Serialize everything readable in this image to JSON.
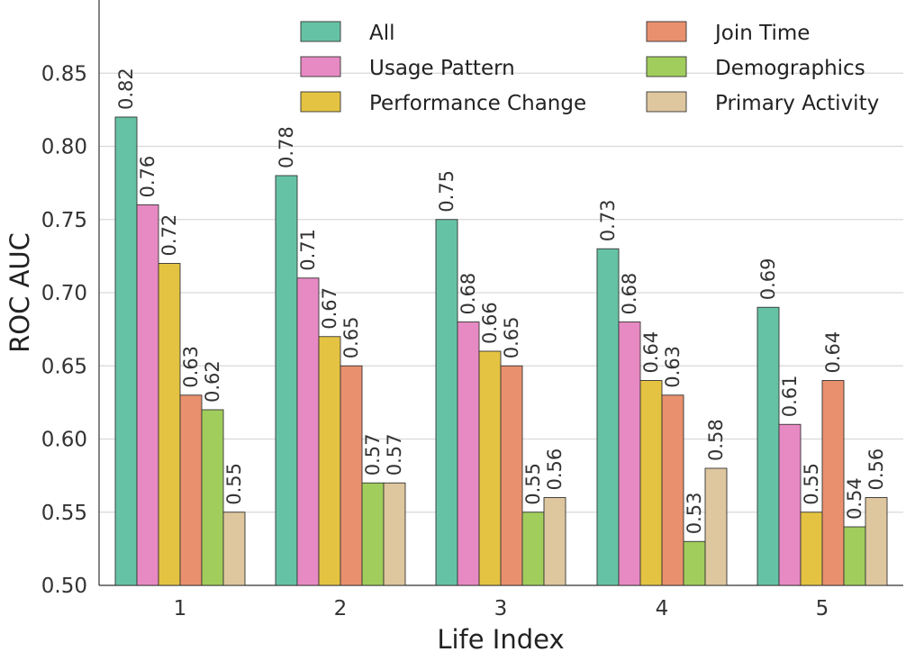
{
  "chart_data": {
    "type": "bar",
    "title": "",
    "xlabel": "Life Index",
    "ylabel": "ROC AUC",
    "ylim": [
      0.5,
      0.9
    ],
    "yticks": [
      "0.50",
      "0.55",
      "0.60",
      "0.65",
      "0.70",
      "0.75",
      "0.80",
      "0.85"
    ],
    "grid": true,
    "legend_position": "top",
    "categories": [
      "1",
      "2",
      "3",
      "4",
      "5"
    ],
    "series": [
      {
        "name": "All",
        "color": "#66c2a5",
        "values": [
          0.82,
          0.78,
          0.75,
          0.73,
          0.69
        ],
        "labels": [
          "0.82",
          "0.78",
          "0.75",
          "0.73",
          "0.69"
        ]
      },
      {
        "name": "Usage Pattern",
        "color": "#e78ac3",
        "values": [
          0.76,
          0.71,
          0.68,
          0.68,
          0.61
        ],
        "labels": [
          "0.76",
          "0.71",
          "0.68",
          "0.68",
          "0.61"
        ]
      },
      {
        "name": "Performance Change",
        "color": "#e5c342",
        "values": [
          0.72,
          0.67,
          0.66,
          0.64,
          0.55
        ],
        "labels": [
          "0.72",
          "0.67",
          "0.66",
          "0.64",
          "0.55"
        ]
      },
      {
        "name": "Join Time",
        "color": "#e9906e",
        "values": [
          0.63,
          0.65,
          0.65,
          0.63,
          0.64
        ],
        "labels": [
          "0.63",
          "0.65",
          "0.65",
          "0.63",
          "0.64"
        ]
      },
      {
        "name": "Demographics",
        "color": "#a1cd5c",
        "values": [
          0.62,
          0.57,
          0.55,
          0.53,
          0.54
        ],
        "labels": [
          "0.62",
          "0.57",
          "0.55",
          "0.53",
          "0.54"
        ]
      },
      {
        "name": "Primary Activity",
        "color": "#dec69e",
        "values": [
          0.55,
          0.57,
          0.56,
          0.58,
          0.56
        ],
        "labels": [
          "0.55",
          "0.57",
          "0.56",
          "0.58",
          "0.56"
        ]
      }
    ]
  }
}
